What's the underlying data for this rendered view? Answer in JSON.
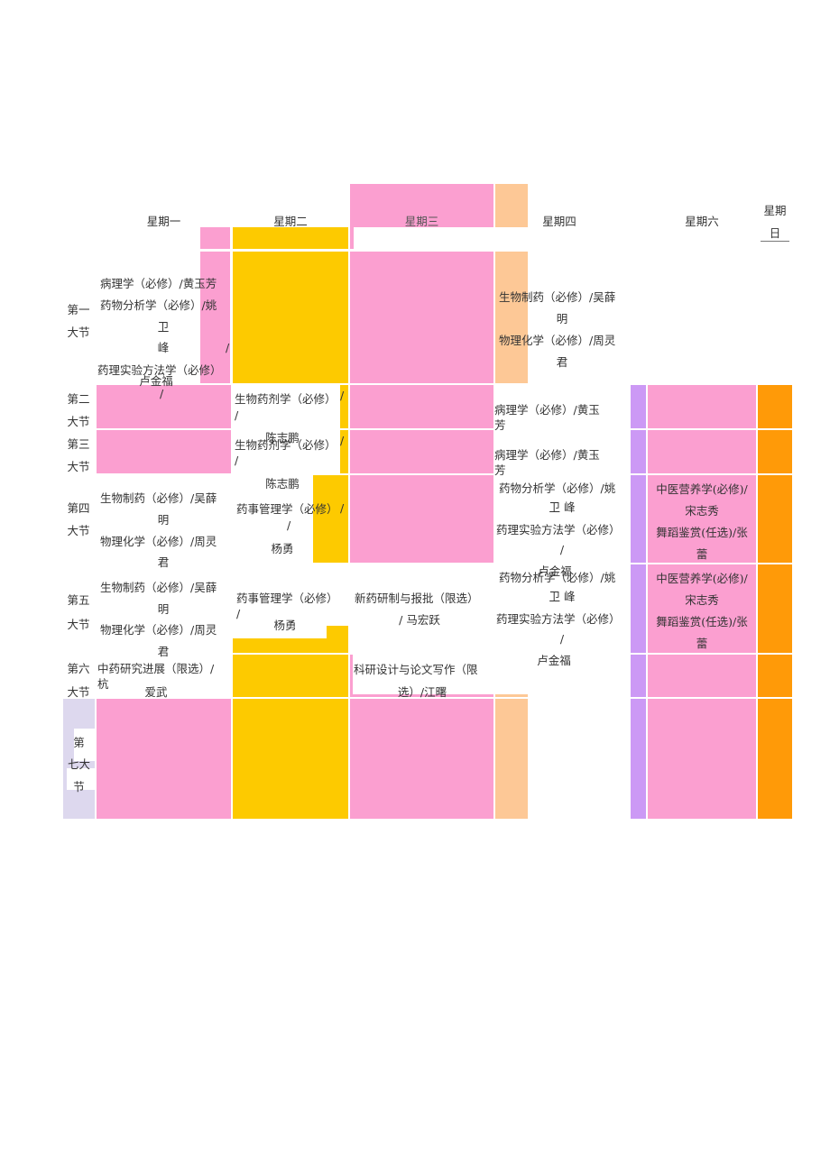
{
  "header": {
    "mon": "星期一",
    "tue": "星期二",
    "wed": "星期三",
    "thu": "星期四",
    "sat": "星期六",
    "sun1": "星期",
    "sun2": "日"
  },
  "periods": {
    "p1a": "第一",
    "p1b": "大节",
    "p2a": "第二",
    "p2b": "大节",
    "p3a": "第三",
    "p3b": "大节",
    "p4a": "第四",
    "p4b": "大节",
    "p5a": "第五",
    "p5b": "大节",
    "p6a": "第六",
    "p6b": "大节",
    "p7a": "第",
    "p7b": "七大",
    "p7c": "节"
  },
  "mon": {
    "p1_l1": "病理学（必修）/黄玉芳",
    "p1_l2": "药物分析学（必修）/姚",
    "p1_l3": "卫",
    "p1_l4": "峰",
    "p1_slash": "/",
    "p1_l5": "药理实验方法学（必修）",
    "p1_l6": "卢金福",
    "p1_l7": "/",
    "p4_l1": "生物制药（必修）/吴薛",
    "p4_l2": "明",
    "p4_l3": "物理化学（必修）/周灵",
    "p4_l4": "君",
    "p5_l1": "生物制药（必修）/吴薛",
    "p5_l2": "明",
    "p5_l3": "物理化学（必修）/周灵",
    "p5_l4": "君",
    "p6_l1": "中药研究进展（限选）/",
    "p6_l2": "杭",
    "p6_l3": "爱武"
  },
  "tue": {
    "p2_l1": "生物药剂学（必修）",
    "p2_s1": "/",
    "p2_s2": "/",
    "p2_l2": "陈志鹏",
    "p3_l1": "生物药剂学（必修）",
    "p3_s1": "/",
    "p3_s2": "/",
    "p3_l2": "陈志鹏",
    "p4_l1": "药事管理学（必修）",
    "p4_s1": "/",
    "p4_s2": "/",
    "p4_l2": "杨勇",
    "p5_l1": "药事管理学（必修）",
    "p5_s1": "/",
    "p5_l2": "杨勇"
  },
  "wed": {
    "p5_l1": "新药研制与报批（限选）",
    "p5_l2": "/ 马宏跃",
    "p6_l1": "科研设计与论文写作（限",
    "p6_l2": "选）/江曙"
  },
  "thu": {
    "p1_l1": "生物制药（必修）/吴薛",
    "p1_l2": "明",
    "p1_l3": "物理化学（必修）/周灵",
    "p1_l4": "君",
    "p2_l1": "病理学（必修）/黄玉",
    "p2_l2": "芳",
    "p3_l1": "病理学（必修）/黄玉",
    "p3_l2": "芳",
    "p4_l1": "药物分析学（必修）/姚",
    "p4_l2": "卫 峰",
    "p4_l3": "药理实验方法学（必修）",
    "p4_l4": "/",
    "p4_l5": "卢金福",
    "p5_l1": "药物分析学（必修）/姚",
    "p5_l2": "卫 峰",
    "p5_l3": "药理实验方法学（必修）",
    "p5_l4": "/",
    "p5_l5": "卢金福"
  },
  "sat": {
    "p4_l1": "中医营养学(必修)/",
    "p4_l2": "宋志秀",
    "p4_l3": "舞蹈鉴赏(任选)/张",
    "p4_l4": "蕾",
    "p5_l1": "中医营养学(必修)/",
    "p5_l2": "宋志秀",
    "p5_l3": "舞蹈鉴赏(任选)/张",
    "p5_l4": "蕾"
  },
  "colors": {
    "pink": "#fb9fd0",
    "yellow": "#fdca00",
    "peach": "#fdc896",
    "purple": "#cc99f5",
    "orange": "#ff9a08",
    "lavender": "#ddd8ee"
  }
}
